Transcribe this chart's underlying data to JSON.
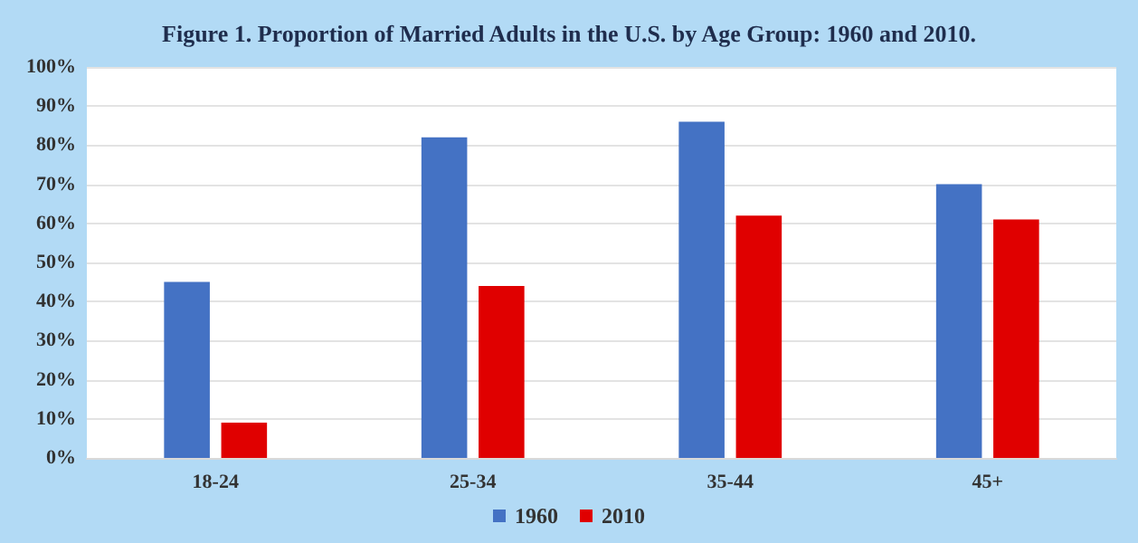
{
  "chart_data": {
    "type": "bar",
    "title": "Figure 1. Proportion of Married Adults in the U.S. by Age Group: 1960 and 2010.",
    "categories": [
      "18-24",
      "25-34",
      "35-44",
      "45+"
    ],
    "series": [
      {
        "name": "1960",
        "color": "#4472c4",
        "values": [
          45,
          82,
          86,
          70
        ]
      },
      {
        "name": "2010",
        "color": "#e00000",
        "values": [
          9,
          44,
          62,
          61
        ]
      }
    ],
    "ylim": [
      0,
      100
    ],
    "yticks": [
      {
        "value": 0,
        "label": "0%"
      },
      {
        "value": 10,
        "label": "10%"
      },
      {
        "value": 20,
        "label": "20%"
      },
      {
        "value": 30,
        "label": "30%"
      },
      {
        "value": 40,
        "label": "40%"
      },
      {
        "value": 50,
        "label": "50%"
      },
      {
        "value": 60,
        "label": "60%"
      },
      {
        "value": 70,
        "label": "70%"
      },
      {
        "value": 80,
        "label": "80%"
      },
      {
        "value": 90,
        "label": "90%"
      },
      {
        "value": 100,
        "label": "100%"
      }
    ],
    "grid": "y",
    "legend": "bottom"
  }
}
